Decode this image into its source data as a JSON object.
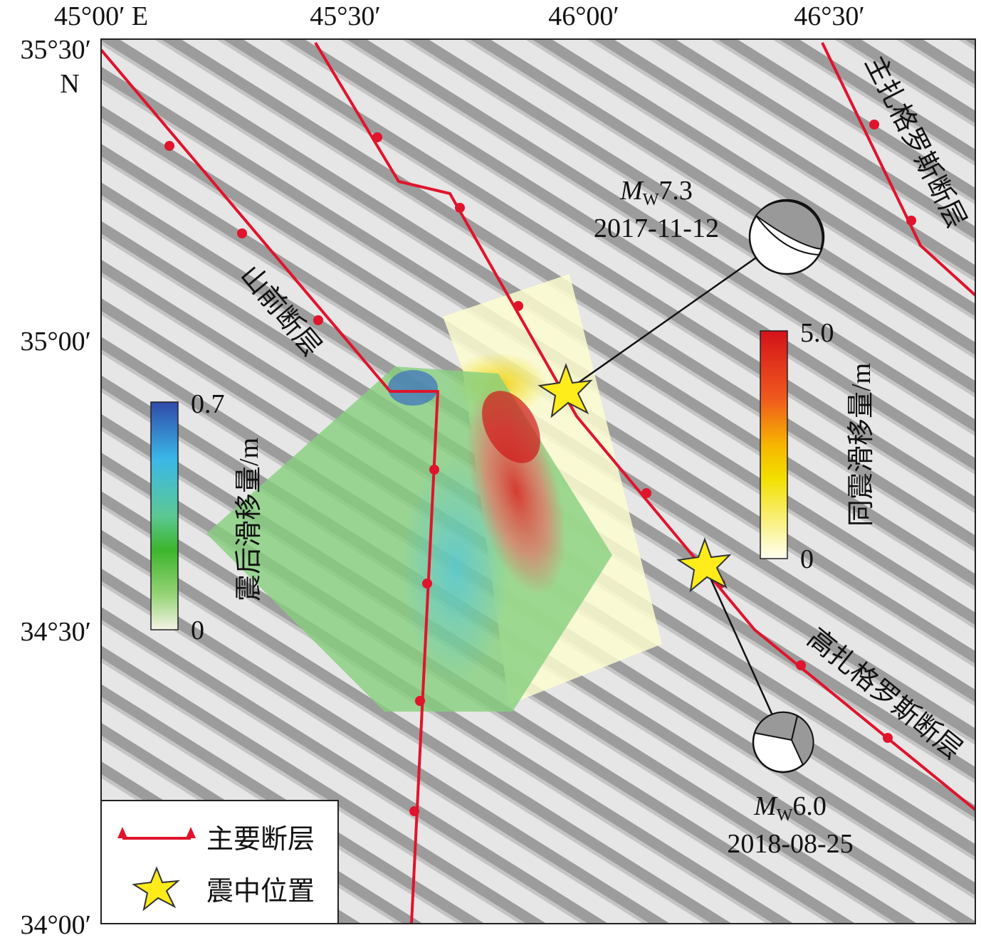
{
  "map": {
    "x_labels": [
      "45°00′ E",
      "45°30′",
      "46°00′",
      "46°30′"
    ],
    "y_labels": [
      "35°30′",
      "N",
      "35°00′",
      "34°30′",
      "34°00′"
    ],
    "faults": [
      "山前断层",
      "高扎格罗斯断层",
      "主扎格罗斯断层"
    ],
    "events": [
      {
        "symbol": "M",
        "subscript": "W",
        "magnitude": "7.3",
        "date": "2017-11-12"
      },
      {
        "symbol": "M",
        "subscript": "W",
        "magnitude": "6.0",
        "date": "2018-08-25"
      }
    ],
    "postseismic_colorbar": {
      "label": "震后滑移量/m",
      "ticks": [
        0.7,
        0
      ]
    },
    "coseismic_colorbar": {
      "label": "同震滑移量/m",
      "ticks": [
        {
          "value": 5,
          "label": "5.0"
        },
        0
      ]
    },
    "legend": [
      "主要断层",
      "震中位置"
    ]
  }
}
